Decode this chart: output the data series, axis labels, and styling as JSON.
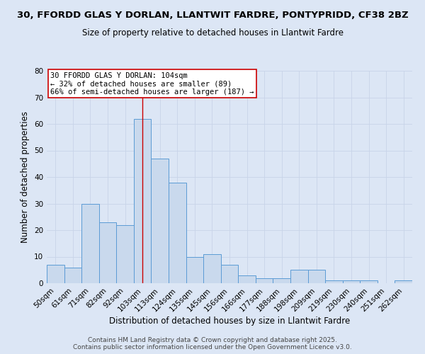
{
  "title_line1": "30, FFORDD GLAS Y DORLAN, LLANTWIT FARDRE, PONTYPRIDD, CF38 2BZ",
  "title_line2": "Size of property relative to detached houses in Llantwit Fardre",
  "xlabel": "Distribution of detached houses by size in Llantwit Fardre",
  "ylabel": "Number of detached properties",
  "categories": [
    "50sqm",
    "61sqm",
    "71sqm",
    "82sqm",
    "92sqm",
    "103sqm",
    "113sqm",
    "124sqm",
    "135sqm",
    "145sqm",
    "156sqm",
    "166sqm",
    "177sqm",
    "188sqm",
    "198sqm",
    "209sqm",
    "219sqm",
    "230sqm",
    "240sqm",
    "251sqm",
    "262sqm"
  ],
  "values": [
    7,
    6,
    30,
    23,
    22,
    62,
    47,
    38,
    10,
    11,
    7,
    3,
    2,
    2,
    5,
    5,
    1,
    1,
    1,
    0,
    1
  ],
  "bar_color": "#c9d9ed",
  "bar_edge_color": "#5b9bd5",
  "vline_x_index": 5,
  "vline_color": "#cc0000",
  "annotation_text": "30 FFORDD GLAS Y DORLAN: 104sqm\n← 32% of detached houses are smaller (89)\n66% of semi-detached houses are larger (187) →",
  "ylim": [
    0,
    80
  ],
  "yticks": [
    0,
    10,
    20,
    30,
    40,
    50,
    60,
    70,
    80
  ],
  "grid_color": "#c8d4e8",
  "background_color": "#dce6f5",
  "footer_text": "Contains HM Land Registry data © Crown copyright and database right 2025.\nContains public sector information licensed under the Open Government Licence v3.0.",
  "title_fontsize": 9.5,
  "subtitle_fontsize": 8.5,
  "axis_label_fontsize": 8.5,
  "tick_fontsize": 7.5,
  "annotation_fontsize": 7.5,
  "footer_fontsize": 6.5
}
